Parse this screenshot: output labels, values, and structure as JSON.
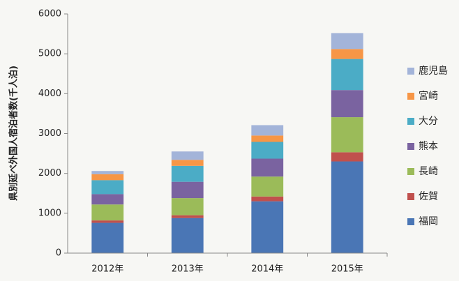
{
  "chart_data": {
    "type": "bar",
    "stacked": true,
    "title": "",
    "ylabel": "県別延べ外国人宿泊者数(千人泊)",
    "xlabel": "",
    "categories": [
      "2012年",
      "2013年",
      "2014年",
      "2015年"
    ],
    "ylim": [
      0,
      6000
    ],
    "yticks": [
      0,
      1000,
      2000,
      3000,
      4000,
      5000,
      6000
    ],
    "grid": false,
    "legend_position": "right",
    "series": [
      {
        "name": "福岡",
        "color": "#4a76b5",
        "values": [
          760,
          880,
          1300,
          2300
        ]
      },
      {
        "name": "佐賀",
        "color": "#c0504d",
        "values": [
          60,
          70,
          120,
          230
        ]
      },
      {
        "name": "長崎",
        "color": "#9bbb59",
        "values": [
          400,
          430,
          500,
          880
        ]
      },
      {
        "name": "熊本",
        "color": "#7a63a0",
        "values": [
          260,
          410,
          450,
          680
        ]
      },
      {
        "name": "大分",
        "color": "#4bacc6",
        "values": [
          350,
          400,
          420,
          780
        ]
      },
      {
        "name": "宮崎",
        "color": "#f79646",
        "values": [
          150,
          150,
          160,
          250
        ]
      },
      {
        "name": "鹿児島",
        "color": "#a3b4d9",
        "values": [
          80,
          210,
          260,
          400
        ]
      }
    ]
  }
}
